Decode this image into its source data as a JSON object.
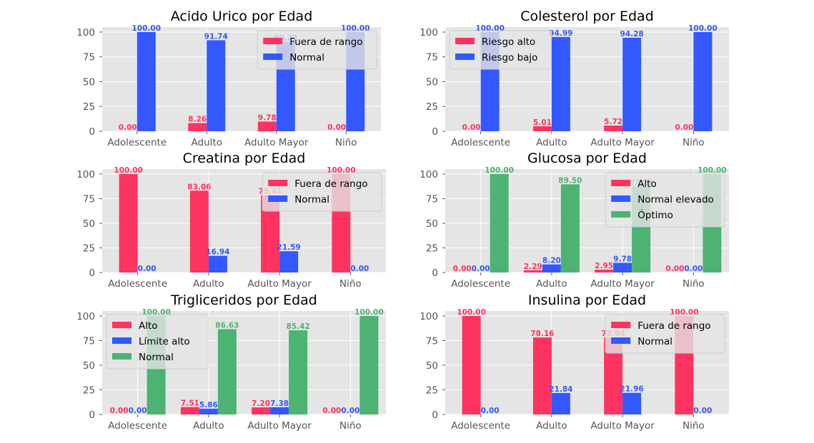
{
  "chart_data": [
    {
      "type": "bar",
      "title": "Acido Urico por Edad",
      "categories": [
        "Adolescente",
        "Adulto",
        "Adulto Mayor",
        "Niño"
      ],
      "series": [
        {
          "name": "Fuera de rango",
          "values": [
            0.0,
            8.26,
            9.78,
            0.0
          ],
          "labels": [
            "0.00",
            "8.26",
            "9.78",
            "0.00"
          ],
          "color": "#ff3360"
        },
        {
          "name": "Normal",
          "values": [
            100.0,
            91.74,
            90.22,
            100.0
          ],
          "labels": [
            "100.00",
            "91.74",
            "90.22",
            "100.00"
          ],
          "color": "#3358ff"
        }
      ],
      "yticks": [
        "0",
        "25",
        "50",
        "75",
        "100"
      ],
      "ylim": [
        0,
        105
      ],
      "legend": "top-right",
      "grid": true
    },
    {
      "type": "bar",
      "title": "Colesterol por Edad",
      "categories": [
        "Adolescente",
        "Adulto",
        "Adulto Mayor",
        "Niño"
      ],
      "series": [
        {
          "name": "Riesgo alto",
          "values": [
            0.0,
            5.01,
            5.72,
            0.0
          ],
          "labels": [
            "0.00",
            "5.01",
            "5.72",
            "0.00"
          ],
          "color": "#ff3360"
        },
        {
          "name": "Riesgo bajo",
          "values": [
            100.0,
            94.99,
            94.28,
            100.0
          ],
          "labels": [
            "100.00",
            "94.99",
            "94.28",
            "100.00"
          ],
          "color": "#3358ff"
        }
      ],
      "yticks": [
        "0",
        "25",
        "50",
        "75",
        "100"
      ],
      "ylim": [
        0,
        105
      ],
      "legend": "top-left",
      "grid": true
    },
    {
      "type": "bar",
      "title": "Creatina por Edad",
      "categories": [
        "Adolescente",
        "Adulto",
        "Adulto Mayor",
        "Niño"
      ],
      "series": [
        {
          "name": "Fuera de rango",
          "values": [
            100.0,
            83.06,
            78.41,
            100.0
          ],
          "labels": [
            "100.00",
            "83.06",
            "78.41",
            "100.00"
          ],
          "color": "#ff3360"
        },
        {
          "name": "Normal",
          "values": [
            0.0,
            16.94,
            21.59,
            0.0
          ],
          "labels": [
            "0.00",
            "16.94",
            "21.59",
            "0.00"
          ],
          "color": "#3358ff"
        }
      ],
      "yticks": [
        "0",
        "25",
        "50",
        "75",
        "100"
      ],
      "ylim": [
        0,
        105
      ],
      "legend": "top-right",
      "grid": true
    },
    {
      "type": "bar",
      "title": "Glucosa por Edad",
      "categories": [
        "Adolescente",
        "Adulto",
        "Adulto Mayor",
        "Niño"
      ],
      "series": [
        {
          "name": "Alto",
          "values": [
            0.0,
            2.29,
            2.95,
            0.0
          ],
          "labels": [
            "0.00",
            "2.29",
            "2.95",
            "0.00"
          ],
          "color": "#ff3360"
        },
        {
          "name": "Normal elevado",
          "values": [
            0.0,
            8.2,
            9.78,
            0.0
          ],
          "labels": [
            "0.00",
            "8.20",
            "9.78",
            "0.00"
          ],
          "color": "#3358ff"
        },
        {
          "name": "Óptimo",
          "values": [
            100.0,
            89.5,
            87.27,
            100.0
          ],
          "labels": [
            "100.00",
            "89.50",
            "87.27",
            "100.00"
          ],
          "color": "#4cb373"
        }
      ],
      "yticks": [
        "0",
        "25",
        "50",
        "75",
        "100"
      ],
      "ylim": [
        0,
        105
      ],
      "legend": "top-right",
      "grid": true
    },
    {
      "type": "bar",
      "title": "Trigliceridos por Edad",
      "categories": [
        "Adolescente",
        "Adulto",
        "Adulto Mayor",
        "Niño"
      ],
      "series": [
        {
          "name": "Alto",
          "values": [
            0.0,
            7.51,
            7.2,
            0.0
          ],
          "labels": [
            "0.00",
            "7.51",
            "7.20",
            "0.00"
          ],
          "color": "#ff3360"
        },
        {
          "name": "Límite alto",
          "values": [
            0.0,
            5.86,
            7.38,
            0.0
          ],
          "labels": [
            "0.00",
            "5.86",
            "7.38",
            "0.00"
          ],
          "color": "#3358ff"
        },
        {
          "name": "Normal",
          "values": [
            100.0,
            86.63,
            85.42,
            100.0
          ],
          "labels": [
            "100.00",
            "86.63",
            "85.42",
            "100.00"
          ],
          "color": "#4cb373"
        }
      ],
      "yticks": [
        "0",
        "25",
        "50",
        "75",
        "100"
      ],
      "ylim": [
        0,
        105
      ],
      "legend": "top-left",
      "grid": true
    },
    {
      "type": "bar",
      "title": "Insulina por Edad",
      "categories": [
        "Adolescente",
        "Adulto",
        "Adulto Mayor",
        "Niño"
      ],
      "series": [
        {
          "name": "Fuera de rango",
          "values": [
            100.0,
            78.16,
            78.04,
            100.0
          ],
          "labels": [
            "100.00",
            "78.16",
            "78.04",
            "100.00"
          ],
          "color": "#ff3360"
        },
        {
          "name": "Normal",
          "values": [
            0.0,
            21.84,
            21.96,
            0.0
          ],
          "labels": [
            "0.00",
            "21.84",
            "21.96",
            "0.00"
          ],
          "color": "#3358ff"
        }
      ],
      "yticks": [
        "0",
        "25",
        "50",
        "75",
        "100"
      ],
      "ylim": [
        0,
        105
      ],
      "legend": "top-right",
      "grid": true
    }
  ],
  "colors": {
    "panel_bg": "#e5e5e5",
    "grid": "#ffffff",
    "tick_text": "#555555",
    "red": "#ff3360",
    "blue": "#3358ff",
    "green": "#4cb373"
  }
}
